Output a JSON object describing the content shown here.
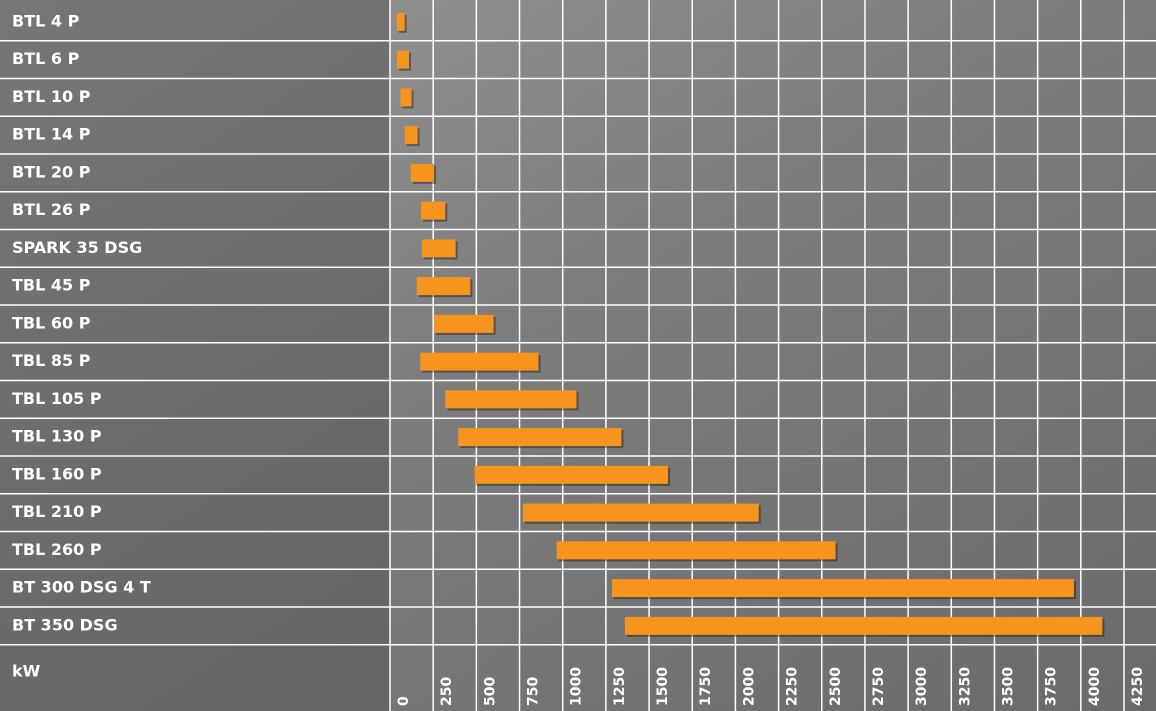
{
  "chart_data": {
    "type": "range_bar",
    "orientation": "horizontal",
    "xlabel": "kW",
    "color": "#f7941d",
    "categories": [
      "BTL 4 P",
      "BTL 6 P",
      "BTL 10 P",
      "BTL 14 P",
      "BTL 20 P",
      "BTL 26 P",
      "SPARK 35 DSG",
      "TBL 45 P",
      "TBL 60 P",
      "TBL 85 P",
      "TBL 105 P",
      "TBL 130 P",
      "TBL 160 P",
      "TBL 210 P",
      "TBL 260 P",
      "BT 300 DSG 4 T",
      "BT 350 DSG"
    ],
    "values": [
      [
        40,
        85
      ],
      [
        40,
        110
      ],
      [
        60,
        125
      ],
      [
        85,
        160
      ],
      [
        120,
        255
      ],
      [
        180,
        320
      ],
      [
        185,
        380
      ],
      [
        155,
        465
      ],
      [
        255,
        600
      ],
      [
        175,
        860
      ],
      [
        320,
        1080
      ],
      [
        395,
        1340
      ],
      [
        490,
        1610
      ],
      [
        770,
        2135
      ],
      [
        965,
        2580
      ],
      [
        1285,
        3960
      ],
      [
        1360,
        4125
      ]
    ],
    "xlim": [
      0,
      4250
    ],
    "xticks": [
      0,
      250,
      500,
      750,
      1000,
      1250,
      1500,
      1750,
      2000,
      2250,
      2500,
      2750,
      3000,
      3250,
      3500,
      3750,
      4000,
      4250
    ],
    "grid": true
  }
}
